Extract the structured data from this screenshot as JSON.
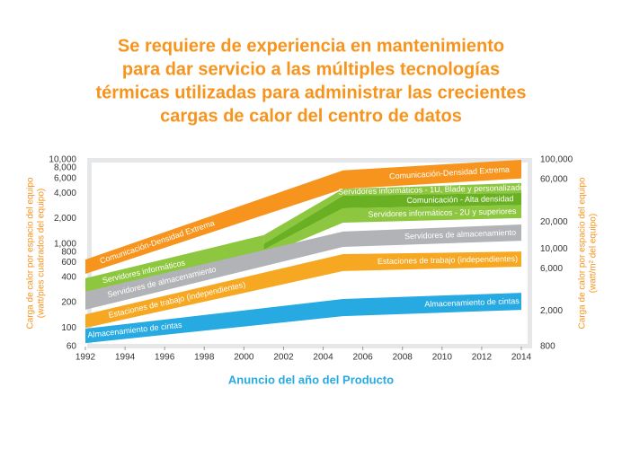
{
  "chart_data": {
    "type": "range_area",
    "title": [
      "Se requiere de experiencia en mantenimiento",
      "para dar servicio a las múltiples tecnologías",
      "térmicas utilizadas para administrar las crecientes",
      "cargas de calor del centro de datos"
    ],
    "xlabel": "Anuncio del año del Producto",
    "ylabel": [
      "Carga de calor por espacio del equipo",
      "(watt/pies cuadrados del equipo)"
    ],
    "y2label": [
      "Carga de calor por espacio del equipo",
      "(watt/m² del equipo)"
    ],
    "xlim": [
      1992,
      2014
    ],
    "xticks": [
      1992,
      1994,
      1996,
      1998,
      2000,
      2002,
      2004,
      2006,
      2008,
      2010,
      2012,
      2014
    ],
    "log_scale": true,
    "ylim": [
      60,
      10000
    ],
    "yticks": [
      60,
      100,
      200,
      400,
      600,
      800,
      {
        "value": 1000,
        "label": "1,000"
      },
      {
        "value": 2000,
        "label": "2,000"
      },
      {
        "value": 4000,
        "label": "4,000"
      },
      {
        "value": 6000,
        "label": "6,000"
      },
      {
        "value": 8000,
        "label": "8,000"
      },
      {
        "value": 10000,
        "label": "10,000"
      }
    ],
    "y2lim": [
      800,
      100000
    ],
    "y2ticks": [
      800,
      {
        "value": 2000,
        "label": "2,000"
      },
      {
        "value": 6000,
        "label": "6,000"
      },
      {
        "value": 10000,
        "label": "10,000"
      },
      {
        "value": 20000,
        "label": "20,000"
      },
      {
        "value": 60000,
        "label": "60,000"
      },
      {
        "value": 100000,
        "label": "100,000"
      }
    ],
    "series": [
      {
        "name": "Comunicación-Densidad Extrema",
        "color": "#f7941d",
        "x": [
          1992,
          2005,
          2014
        ],
        "low": [
          440,
          4500,
          6000
        ],
        "high": [
          650,
          7500,
          10000
        ]
      },
      {
        "name": "Servidores informáticos",
        "color": "#8dc63f",
        "x": [
          1992,
          2001
        ],
        "low": [
          270,
          720
        ],
        "high": [
          390,
          1270
        ]
      },
      {
        "name": "Servidores informáticos - 1U, Blade y personalizados",
        "color": "#8dc63f",
        "x": [
          2001,
          2005,
          2014
        ],
        "low": [
          1000,
          3750,
          4030
        ],
        "high": [
          1270,
          4500,
          5300
        ]
      },
      {
        "name": "Comunicación - Alta densidad",
        "color": "#6ab023",
        "x": [
          2001,
          2005,
          2014
        ],
        "low": [
          850,
          2650,
          2900
        ],
        "high": [
          1000,
          3750,
          4030
        ]
      },
      {
        "name": "Servidores informáticos - 2U y superiores",
        "color": "#8dc63f",
        "x": [
          2001,
          2005,
          2014
        ],
        "low": [
          720,
          1790,
          2030
        ],
        "high": [
          850,
          2650,
          2900
        ]
      },
      {
        "name": "Servidores de almacenamiento",
        "color": "#b1b3b6",
        "x": [
          1992,
          2005,
          2014
        ],
        "low": [
          165,
          920,
          1090
        ],
        "high": [
          270,
          1400,
          1700
        ]
      },
      {
        "name": "Estaciones de trabajo (independientes)",
        "color": "#f7a823",
        "x": [
          1992,
          2005,
          2014
        ],
        "low": [
          100,
          475,
          535
        ],
        "high": [
          145,
          755,
          810
        ]
      },
      {
        "name": "Almacenamiento de cintas",
        "color": "#27aae1",
        "x": [
          1992,
          2005,
          2014
        ],
        "low": [
          66,
          138,
          164
        ],
        "high": [
          98,
          221,
          262
        ]
      }
    ]
  }
}
